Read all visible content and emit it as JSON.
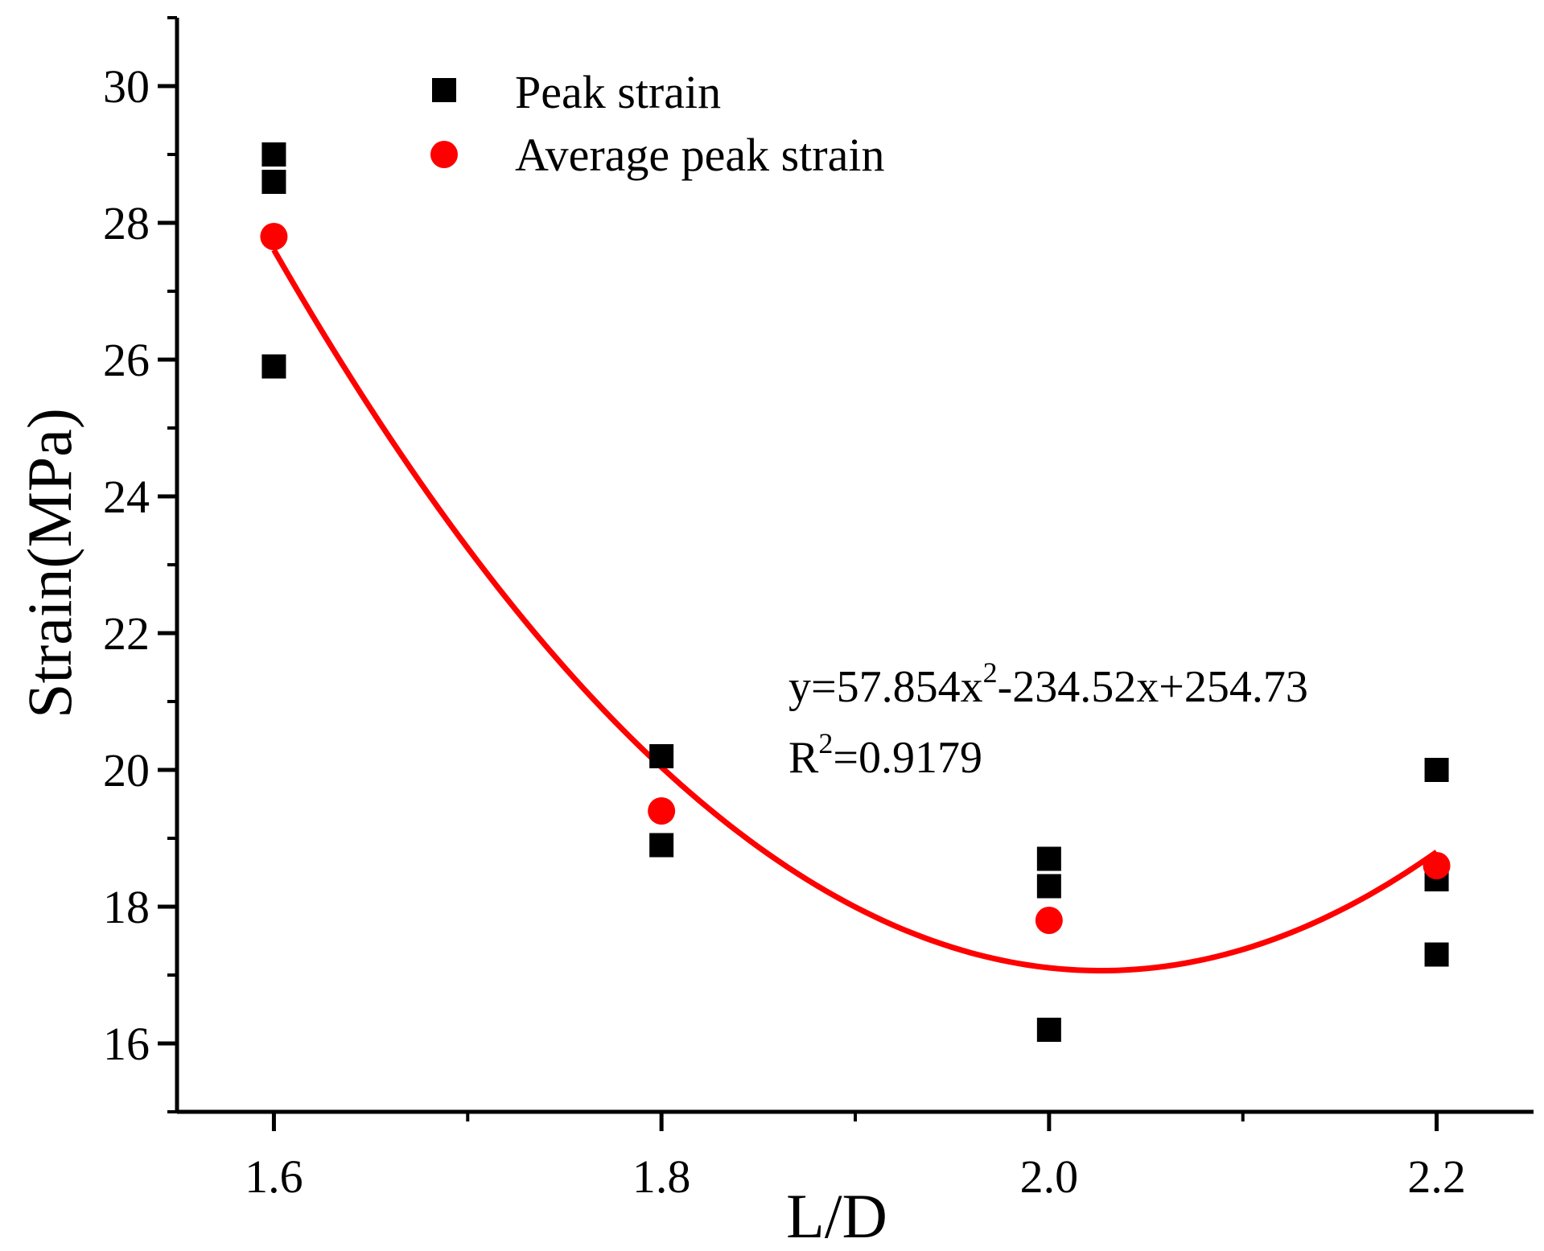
{
  "chart_data": {
    "type": "scatter",
    "title": "",
    "xlabel": "L/D",
    "ylabel": "Strain(MPa)",
    "xlim": [
      1.55,
      2.25
    ],
    "ylim": [
      15,
      31
    ],
    "x_ticks": [
      1.6,
      1.8,
      2.0,
      2.2
    ],
    "x_tick_labels": [
      "1.6",
      "1.8",
      "2.0",
      "2.2"
    ],
    "y_ticks": [
      16,
      18,
      20,
      22,
      24,
      26,
      28,
      30
    ],
    "y_tick_labels": [
      "16",
      "18",
      "20",
      "22",
      "24",
      "26",
      "28",
      "30"
    ],
    "grid": false,
    "legend_position": "top-center",
    "series": [
      {
        "name": "Peak strain",
        "marker": "square",
        "color": "#000000",
        "points": [
          {
            "x": 1.6,
            "y": 29.0
          },
          {
            "x": 1.6,
            "y": 28.6
          },
          {
            "x": 1.6,
            "y": 25.9
          },
          {
            "x": 1.8,
            "y": 20.2
          },
          {
            "x": 1.8,
            "y": 18.9
          },
          {
            "x": 2.0,
            "y": 18.7
          },
          {
            "x": 2.0,
            "y": 18.3
          },
          {
            "x": 2.0,
            "y": 16.2
          },
          {
            "x": 2.2,
            "y": 20.0
          },
          {
            "x": 2.2,
            "y": 18.4
          },
          {
            "x": 2.2,
            "y": 17.3
          }
        ]
      },
      {
        "name": "Average peak strain",
        "marker": "circle",
        "color": "#ff0000",
        "points": [
          {
            "x": 1.6,
            "y": 27.8
          },
          {
            "x": 1.8,
            "y": 19.4
          },
          {
            "x": 2.0,
            "y": 17.8
          },
          {
            "x": 2.2,
            "y": 18.6
          }
        ]
      }
    ],
    "fit": {
      "type": "quadratic",
      "a": 57.854,
      "b": -234.52,
      "c": 254.73,
      "x_range": [
        1.6,
        2.2
      ],
      "color": "#ff0000",
      "equation": {
        "prefix": "y=57.854x",
        "exp": "2",
        "suffix": "-234.52x+254.73"
      },
      "r_squared": {
        "prefix": "R",
        "exp": "2",
        "suffix": "=0.9179"
      }
    }
  }
}
